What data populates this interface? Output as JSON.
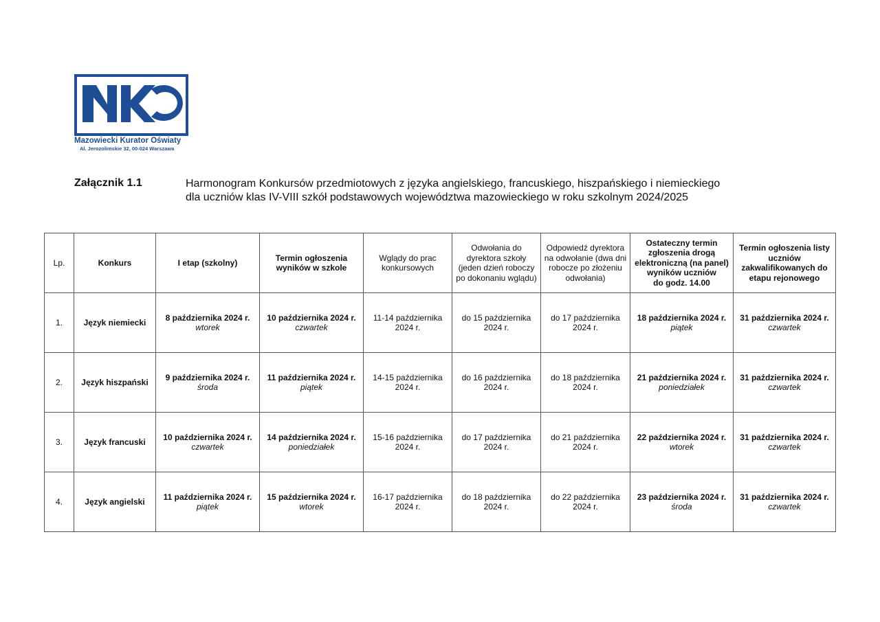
{
  "logo": {
    "letters": "MKO",
    "name": "Mazowiecki Kurator Oświaty",
    "address": "Al. Jerozolimskie 32, 00-024  Warszawa",
    "color": "#1f4e96"
  },
  "annex": "Załącznik 1.1",
  "title": {
    "line1": "Harmonogram Konkursów przedmiotowych z języka angielskiego, francuskiego, hiszpańskiego i niemieckiego",
    "line2": "dla uczniów klas IV-VIII szkół podstawowych województwa mazowieckiego w roku szkolnym 2024/2025"
  },
  "table": {
    "headers": [
      "Lp.",
      "Konkurs",
      "I etap (szkolny)",
      "Termin ogłoszenia wyników w szkole",
      "Wglądy do prac konkursowych",
      "Odwołania do dyrektora szkoły (jeden dzień roboczy po dokonaniu wglądu)",
      "Odpowiedź dyrektora na odwołanie (dwa dni robocze po złożeniu odwołania)",
      "Ostateczny termin zgłoszenia drogą elektroniczną (na panel) wyników uczniów",
      "do godz. 14.00",
      "Termin ogłoszenia listy uczniów zakwalifikowanych do etapu rejonowego"
    ],
    "rows": [
      {
        "lp": "1.",
        "konkurs": "Język niemiecki",
        "etap1": "8 października 2024 r.",
        "etap1_day": "wtorek",
        "wyniki": "10 października 2024 r.",
        "wyniki_day": "czwartek",
        "wglady": "11-14 października",
        "wglady2": "2024 r.",
        "odwolania": "do 15 października",
        "odwolania2": "2024 r.",
        "odpowiedz": "do 17 października",
        "odpowiedz2": "2024 r.",
        "zgloszenie": "18 października 2024 r.",
        "zgloszenie_day": "piątek",
        "lista": "31 października 2024 r.",
        "lista_day": "czwartek"
      },
      {
        "lp": "2.",
        "konkurs": "Język hiszpański",
        "etap1": "9 października 2024 r.",
        "etap1_day": "środa",
        "wyniki": "11 października 2024 r.",
        "wyniki_day": "piątek",
        "wglady": "14-15 października",
        "wglady2": "2024 r.",
        "odwolania": "do 16 października",
        "odwolania2": "2024 r.",
        "odpowiedz": "do 18 października",
        "odpowiedz2": "2024 r.",
        "zgloszenie": "21 października 2024 r.",
        "zgloszenie_day": "poniedziałek",
        "lista": "31 października 2024 r.",
        "lista_day": "czwartek"
      },
      {
        "lp": "3.",
        "konkurs": "Język francuski",
        "etap1": "10 października 2024 r.",
        "etap1_day": "czwartek",
        "wyniki": "14 października 2024 r.",
        "wyniki_day": "poniedziałek",
        "wglady": "15-16 października",
        "wglady2": "2024 r.",
        "odwolania": "do 17 października",
        "odwolania2": "2024 r.",
        "odpowiedz": "do 21 października",
        "odpowiedz2": "2024 r.",
        "zgloszenie": "22 października 2024 r.",
        "zgloszenie_day": "wtorek",
        "lista": "31 października 2024 r.",
        "lista_day": "czwartek"
      },
      {
        "lp": "4.",
        "konkurs": "Język angielski",
        "etap1": "11 października 2024 r.",
        "etap1_day": "piątek",
        "wyniki": "15 października 2024 r.",
        "wyniki_day": "wtorek",
        "wglady": "16-17 października",
        "wglady2": "2024 r.",
        "odwolania": "do 18 października",
        "odwolania2": "2024 r.",
        "odpowiedz": "do 22 października",
        "odpowiedz2": "2024 r.",
        "zgloszenie": "23 października 2024 r.",
        "zgloszenie_day": "środa",
        "lista": "31 października 2024 r.",
        "lista_day": "czwartek"
      }
    ]
  }
}
